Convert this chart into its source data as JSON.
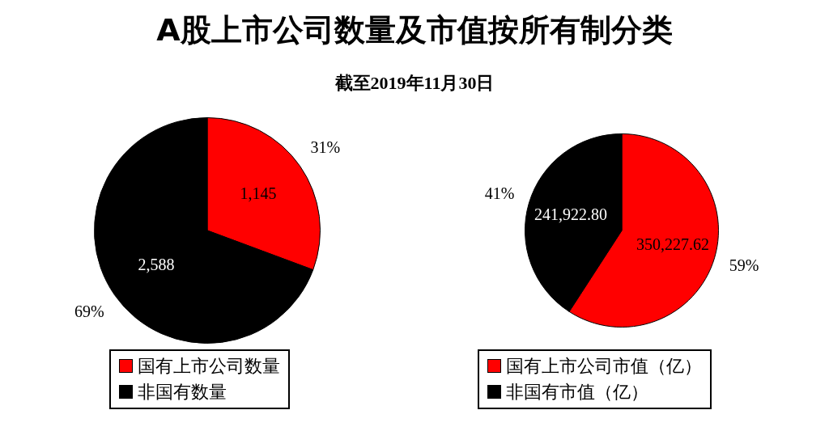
{
  "chart_data": [
    {
      "type": "pie",
      "title": "A股上市公司数量及市值按所有制分类",
      "subtitle": "截至2019年11月30日",
      "categories": [
        "国有上市公司数量",
        "非国有数量"
      ],
      "values": [
        1145,
        2588
      ],
      "colors": [
        "#ff0000",
        "#000000"
      ],
      "value_labels": [
        "1,145",
        "2,588"
      ],
      "annotations": [
        "31%",
        "69%"
      ],
      "legend": "bottom"
    },
    {
      "type": "pie",
      "categories": [
        "国有上市公司市值（亿）",
        "非国有市值（亿）"
      ],
      "values": [
        350227.62,
        241922.8
      ],
      "colors": [
        "#ff0000",
        "#000000"
      ],
      "value_labels": [
        "350,227.62",
        "241,922.80"
      ],
      "annotations": [
        "59%",
        "41%"
      ],
      "legend": "bottom"
    }
  ]
}
